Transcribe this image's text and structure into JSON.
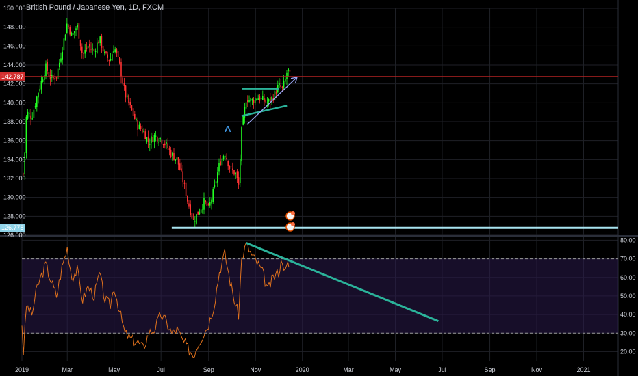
{
  "header": {
    "title": "British Pound / Japanese Yen, 1D, FXCM"
  },
  "colors": {
    "bg": "#000000",
    "grid": "#1f2127",
    "up": "#26a69a",
    "up_bright": "#22ff22",
    "down": "#ff3333",
    "rsi_line": "#e1721d",
    "rsi_band": "#2a1a4a",
    "support": "#a8e4f0",
    "trend": "#2bb39a",
    "arrow": "#9aa6f5",
    "text": "#d1d4dc"
  },
  "price_panel": {
    "y_range": [
      126.0,
      150.0
    ],
    "y_ticks": [
      "150.000",
      "148.000",
      "146.000",
      "144.000",
      "142.000",
      "140.000",
      "138.000",
      "136.000",
      "134.000",
      "132.000",
      "130.000",
      "128.000",
      "126.000"
    ],
    "current_price_label": "142.787",
    "support_price_label": "126.778",
    "current_price": 142.787,
    "support_price": 126.778
  },
  "rsi_panel": {
    "y_range": [
      15,
      82
    ],
    "y_ticks": [
      "80.00",
      "70.00",
      "60.00",
      "50.00",
      "40.00",
      "30.00",
      "20.00"
    ],
    "overbought": 70,
    "oversold": 30
  },
  "x_axis": {
    "labels": [
      "2019",
      "Mar",
      "May",
      "Jul",
      "Sep",
      "Nov",
      "2020",
      "Mar",
      "May",
      "Jul",
      "Sep",
      "Nov",
      "2021"
    ]
  },
  "chart_data": {
    "type": "candlestick",
    "title": "British Pound / Japanese Yen, 1D, FXCM",
    "x_range": [
      "2019-01-01",
      "2021-02-15"
    ],
    "y_range": [
      126.0,
      150.0
    ],
    "close_path": [
      [
        "2019-01-01",
        140.5
      ],
      [
        "2019-01-03",
        131.5
      ],
      [
        "2019-01-07",
        139.0
      ],
      [
        "2019-01-14",
        138.5
      ],
      [
        "2019-01-21",
        140.8
      ],
      [
        "2019-02-01",
        143.8
      ],
      [
        "2019-02-08",
        142.5
      ],
      [
        "2019-02-15",
        142.8
      ],
      [
        "2019-02-22",
        145.5
      ],
      [
        "2019-03-01",
        148.5
      ],
      [
        "2019-03-07",
        147.0
      ],
      [
        "2019-03-14",
        148.2
      ],
      [
        "2019-03-21",
        145.0
      ],
      [
        "2019-03-28",
        146.0
      ],
      [
        "2019-04-05",
        145.5
      ],
      [
        "2019-04-12",
        146.8
      ],
      [
        "2019-04-19",
        145.0
      ],
      [
        "2019-04-26",
        144.5
      ],
      [
        "2019-05-01",
        146.0
      ],
      [
        "2019-05-08",
        144.0
      ],
      [
        "2019-05-15",
        141.0
      ],
      [
        "2019-05-22",
        139.5
      ],
      [
        "2019-06-01",
        137.5
      ],
      [
        "2019-06-08",
        137.0
      ],
      [
        "2019-06-15",
        135.8
      ],
      [
        "2019-06-22",
        136.5
      ],
      [
        "2019-07-01",
        136.2
      ],
      [
        "2019-07-08",
        135.5
      ],
      [
        "2019-07-15",
        134.5
      ],
      [
        "2019-07-22",
        134.0
      ],
      [
        "2019-07-29",
        132.0
      ],
      [
        "2019-08-05",
        129.5
      ],
      [
        "2019-08-12",
        127.5
      ],
      [
        "2019-08-19",
        128.5
      ],
      [
        "2019-08-26",
        129.5
      ],
      [
        "2019-09-01",
        128.8
      ],
      [
        "2019-09-08",
        130.8
      ],
      [
        "2019-09-15",
        133.5
      ],
      [
        "2019-09-22",
        134.8
      ],
      [
        "2019-09-29",
        133.0
      ],
      [
        "2019-10-06",
        132.5
      ],
      [
        "2019-10-10",
        131.2
      ],
      [
        "2019-10-14",
        137.0
      ],
      [
        "2019-10-20",
        140.5
      ],
      [
        "2019-10-27",
        140.2
      ],
      [
        "2019-11-03",
        140.6
      ],
      [
        "2019-11-10",
        140.3
      ],
      [
        "2019-11-17",
        140.0
      ],
      [
        "2019-11-24",
        140.6
      ],
      [
        "2019-12-01",
        141.8
      ],
      [
        "2019-12-06",
        141.5
      ],
      [
        "2019-12-10",
        142.5
      ],
      [
        "2019-12-13",
        143.6
      ],
      [
        "2019-12-16",
        142.8
      ]
    ],
    "support_level": 126.778,
    "last_price": 142.787,
    "marker": "^",
    "trendlines": [
      {
        "name": "range_top",
        "from": [
          "2019-10-14",
          141.5
        ],
        "to": [
          "2019-12-02",
          141.5
        ]
      },
      {
        "name": "rising_support",
        "from": [
          "2019-10-14",
          138.6
        ],
        "to": [
          "2019-12-12",
          139.7
        ]
      },
      {
        "name": "projection_arrow",
        "from": [
          "2019-10-21",
          137.7
        ],
        "to": [
          "2019-12-25",
          142.7
        ]
      }
    ],
    "rsi": {
      "y_range": [
        15,
        82
      ],
      "levels": [
        70,
        30
      ],
      "values": [
        [
          "2019-01-01",
          35
        ],
        [
          "2019-01-03",
          20
        ],
        [
          "2019-01-07",
          45
        ],
        [
          "2019-01-14",
          40
        ],
        [
          "2019-01-21",
          55
        ],
        [
          "2019-02-01",
          67
        ],
        [
          "2019-02-08",
          58
        ],
        [
          "2019-02-15",
          50
        ],
        [
          "2019-02-22",
          65
        ],
        [
          "2019-03-01",
          76
        ],
        [
          "2019-03-07",
          60
        ],
        [
          "2019-03-14",
          64
        ],
        [
          "2019-03-21",
          48
        ],
        [
          "2019-03-28",
          55
        ],
        [
          "2019-04-05",
          50
        ],
        [
          "2019-04-12",
          62
        ],
        [
          "2019-04-19",
          48
        ],
        [
          "2019-04-26",
          45
        ],
        [
          "2019-05-01",
          55
        ],
        [
          "2019-05-08",
          42
        ],
        [
          "2019-05-15",
          30
        ],
        [
          "2019-05-22",
          27
        ],
        [
          "2019-06-01",
          25
        ],
        [
          "2019-06-08",
          22
        ],
        [
          "2019-06-15",
          30
        ],
        [
          "2019-06-22",
          32
        ],
        [
          "2019-07-01",
          40
        ],
        [
          "2019-07-08",
          36
        ],
        [
          "2019-07-15",
          30
        ],
        [
          "2019-07-22",
          32
        ],
        [
          "2019-07-29",
          26
        ],
        [
          "2019-08-05",
          22
        ],
        [
          "2019-08-12",
          18
        ],
        [
          "2019-08-19",
          25
        ],
        [
          "2019-08-26",
          30
        ],
        [
          "2019-09-01",
          35
        ],
        [
          "2019-09-08",
          45
        ],
        [
          "2019-09-15",
          63
        ],
        [
          "2019-09-22",
          73
        ],
        [
          "2019-09-29",
          58
        ],
        [
          "2019-10-06",
          45
        ],
        [
          "2019-10-10",
          40
        ],
        [
          "2019-10-14",
          70
        ],
        [
          "2019-10-20",
          78
        ],
        [
          "2019-10-27",
          72
        ],
        [
          "2019-11-03",
          68
        ],
        [
          "2019-11-10",
          63
        ],
        [
          "2019-11-17",
          53
        ],
        [
          "2019-11-24",
          60
        ],
        [
          "2019-12-01",
          63
        ],
        [
          "2019-12-06",
          70
        ],
        [
          "2019-12-10",
          63
        ],
        [
          "2019-12-13",
          67
        ],
        [
          "2019-12-16",
          65
        ]
      ],
      "trendline": {
        "from": [
          "2019-10-20",
          78.5
        ],
        "to": [
          "2020-06-26",
          36.5
        ]
      }
    }
  }
}
